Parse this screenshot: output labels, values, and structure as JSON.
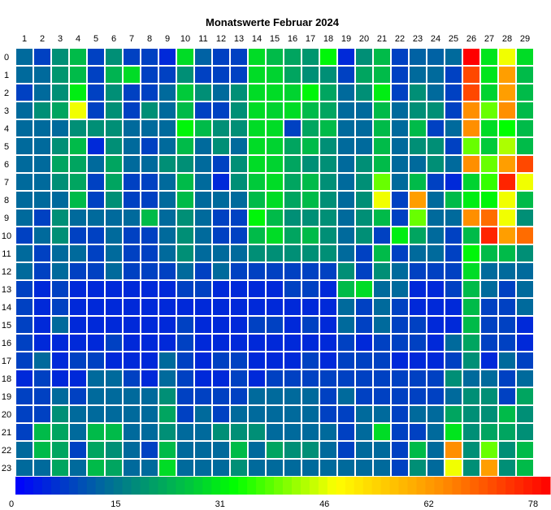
{
  "chart_data": {
    "type": "heatmap",
    "title": "Monatswerte Februar 2024",
    "xlabel": "",
    "ylabel": "",
    "x_categories": [
      "1",
      "2",
      "3",
      "4",
      "5",
      "6",
      "7",
      "8",
      "9",
      "10",
      "11",
      "12",
      "13",
      "14",
      "15",
      "16",
      "17",
      "18",
      "19",
      "20",
      "21",
      "22",
      "23",
      "24",
      "25",
      "26",
      "27",
      "28",
      "29"
    ],
    "y_categories": [
      "0",
      "1",
      "2",
      "3",
      "4",
      "5",
      "6",
      "7",
      "8",
      "9",
      "10",
      "11",
      "12",
      "13",
      "14",
      "15",
      "16",
      "17",
      "18",
      "19",
      "20",
      "21",
      "22",
      "23"
    ],
    "colorbar": {
      "range": [
        0,
        78
      ],
      "tick_labels": [
        "0",
        "15",
        "31",
        "46",
        "62",
        "78"
      ],
      "colormap": "blue-green-yellow-red"
    },
    "values": [
      [
        13,
        8,
        18,
        24,
        8,
        18,
        8,
        8,
        5,
        28,
        12,
        8,
        8,
        28,
        24,
        21,
        19,
        31,
        5,
        18,
        24,
        8,
        12,
        12,
        13,
        78,
        29,
        46,
        28
      ],
      [
        13,
        13,
        19,
        24,
        8,
        23,
        28,
        8,
        8,
        18,
        8,
        8,
        8,
        28,
        27,
        21,
        18,
        18,
        8,
        21,
        24,
        8,
        13,
        13,
        8,
        70,
        29,
        60,
        24
      ],
      [
        8,
        13,
        18,
        30,
        8,
        18,
        8,
        8,
        13,
        26,
        18,
        13,
        18,
        28,
        28,
        27,
        31,
        21,
        13,
        18,
        30,
        8,
        18,
        13,
        8,
        70,
        27,
        60,
        24
      ],
      [
        13,
        18,
        21,
        46,
        8,
        18,
        8,
        18,
        13,
        24,
        8,
        8,
        18,
        28,
        27,
        28,
        24,
        21,
        13,
        13,
        24,
        13,
        18,
        18,
        8,
        62,
        38,
        62,
        24
      ],
      [
        13,
        13,
        13,
        18,
        18,
        18,
        13,
        13,
        13,
        31,
        24,
        18,
        18,
        28,
        28,
        8,
        21,
        24,
        13,
        13,
        24,
        13,
        24,
        8,
        13,
        62,
        28,
        32,
        24
      ],
      [
        13,
        13,
        18,
        24,
        5,
        18,
        13,
        8,
        13,
        24,
        13,
        18,
        13,
        28,
        27,
        21,
        24,
        18,
        13,
        13,
        24,
        13,
        18,
        18,
        8,
        38,
        26,
        42,
        24
      ],
      [
        13,
        13,
        21,
        21,
        13,
        21,
        13,
        13,
        18,
        18,
        13,
        8,
        18,
        28,
        27,
        21,
        18,
        18,
        13,
        18,
        24,
        13,
        13,
        18,
        13,
        62,
        38,
        60,
        70
      ],
      [
        13,
        13,
        18,
        21,
        8,
        21,
        8,
        8,
        13,
        24,
        13,
        5,
        18,
        26,
        28,
        21,
        24,
        18,
        13,
        18,
        38,
        13,
        24,
        8,
        5,
        27,
        35,
        74,
        46
      ],
      [
        13,
        13,
        13,
        24,
        8,
        18,
        8,
        8,
        13,
        24,
        13,
        13,
        13,
        24,
        28,
        21,
        24,
        18,
        13,
        18,
        46,
        8,
        60,
        13,
        24,
        30,
        31,
        46,
        24
      ],
      [
        13,
        8,
        18,
        13,
        13,
        13,
        13,
        24,
        13,
        18,
        13,
        8,
        8,
        31,
        24,
        18,
        18,
        18,
        13,
        18,
        24,
        8,
        38,
        13,
        13,
        62,
        66,
        46,
        18
      ],
      [
        8,
        13,
        18,
        8,
        8,
        13,
        8,
        8,
        13,
        18,
        13,
        8,
        8,
        24,
        28,
        21,
        24,
        18,
        13,
        18,
        8,
        30,
        21,
        13,
        8,
        24,
        74,
        60,
        66
      ],
      [
        13,
        8,
        13,
        13,
        8,
        13,
        8,
        8,
        13,
        18,
        13,
        13,
        13,
        18,
        18,
        18,
        18,
        18,
        13,
        8,
        24,
        8,
        13,
        13,
        8,
        31,
        24,
        24,
        18
      ],
      [
        13,
        8,
        13,
        8,
        8,
        13,
        8,
        8,
        8,
        13,
        8,
        13,
        8,
        8,
        8,
        8,
        8,
        8,
        18,
        8,
        18,
        13,
        8,
        8,
        8,
        28,
        13,
        13,
        13
      ],
      [
        8,
        5,
        8,
        5,
        5,
        5,
        5,
        5,
        5,
        8,
        8,
        5,
        5,
        5,
        5,
        8,
        8,
        5,
        24,
        28,
        13,
        13,
        5,
        5,
        8,
        24,
        13,
        8,
        13
      ],
      [
        8,
        5,
        8,
        5,
        5,
        5,
        5,
        5,
        5,
        5,
        5,
        5,
        5,
        5,
        5,
        5,
        5,
        5,
        13,
        8,
        13,
        8,
        5,
        5,
        5,
        24,
        8,
        8,
        13
      ],
      [
        8,
        5,
        13,
        5,
        5,
        5,
        5,
        5,
        5,
        8,
        5,
        5,
        5,
        8,
        8,
        5,
        8,
        5,
        13,
        8,
        13,
        8,
        8,
        5,
        5,
        24,
        8,
        8,
        5
      ],
      [
        8,
        5,
        5,
        5,
        5,
        8,
        5,
        5,
        5,
        8,
        5,
        5,
        5,
        5,
        5,
        5,
        5,
        5,
        8,
        5,
        8,
        8,
        8,
        5,
        13,
        21,
        8,
        8,
        5
      ],
      [
        8,
        13,
        5,
        8,
        8,
        5,
        5,
        5,
        13,
        8,
        5,
        8,
        8,
        5,
        5,
        5,
        8,
        5,
        8,
        8,
        8,
        5,
        5,
        5,
        8,
        18,
        5,
        13,
        8
      ],
      [
        5,
        8,
        5,
        5,
        13,
        13,
        8,
        5,
        13,
        8,
        5,
        5,
        8,
        5,
        8,
        8,
        8,
        8,
        8,
        8,
        8,
        8,
        8,
        8,
        18,
        13,
        13,
        8,
        13
      ],
      [
        8,
        8,
        13,
        8,
        13,
        13,
        13,
        13,
        18,
        8,
        8,
        8,
        8,
        13,
        13,
        13,
        13,
        8,
        13,
        8,
        8,
        8,
        8,
        8,
        13,
        18,
        18,
        8,
        21
      ],
      [
        8,
        8,
        18,
        13,
        13,
        13,
        13,
        13,
        21,
        8,
        13,
        8,
        13,
        13,
        13,
        13,
        13,
        8,
        8,
        13,
        13,
        8,
        13,
        13,
        21,
        18,
        18,
        24,
        18
      ],
      [
        8,
        24,
        21,
        13,
        24,
        24,
        13,
        13,
        18,
        13,
        13,
        18,
        18,
        18,
        13,
        13,
        13,
        13,
        8,
        13,
        28,
        8,
        8,
        13,
        29,
        18,
        21,
        21,
        18
      ],
      [
        13,
        24,
        21,
        8,
        21,
        18,
        13,
        8,
        24,
        13,
        13,
        13,
        24,
        13,
        21,
        18,
        18,
        13,
        8,
        13,
        13,
        8,
        24,
        13,
        62,
        18,
        38,
        18,
        24
      ],
      [
        13,
        13,
        21,
        13,
        24,
        21,
        13,
        13,
        28,
        13,
        13,
        13,
        18,
        13,
        13,
        13,
        13,
        13,
        13,
        13,
        13,
        8,
        18,
        13,
        46,
        18,
        60,
        18,
        24
      ]
    ]
  }
}
